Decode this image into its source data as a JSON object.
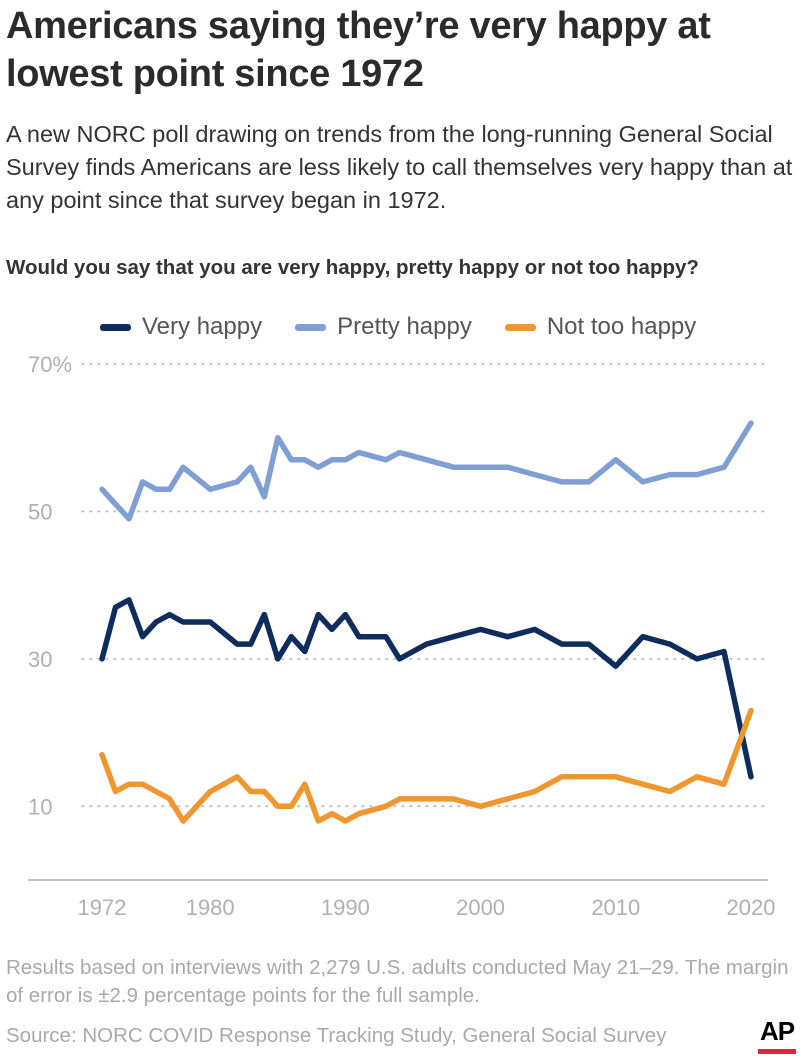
{
  "title": "Americans saying they’re very happy at lowest point since 1972",
  "subtitle": "A new NORC poll drawing on trends from the long-running General Social Survey finds Americans are less likely to call themselves very happy than at any point since that survey began in 1972.",
  "question": "Would you say that you are very happy, pretty happy or not too happy?",
  "note": "Results based on interviews with 2,279 U.S. adults conducted May 21–29. The margin of error is ±2.9 percentage points for the full sample.",
  "source": "Source: NORC COVID Response Tracking Study, General Social Survey",
  "logo_text": "AP",
  "colors": {
    "very_happy": "#0e2d5c",
    "pretty_happy": "#7f9fd4",
    "not_too_happy": "#f0962e",
    "logo_accent": "#e2233e"
  },
  "chart_data": {
    "type": "line",
    "x_ticks": [
      1972,
      1980,
      1990,
      2000,
      2010,
      2020
    ],
    "y_ticks": [
      10,
      30,
      50,
      70
    ],
    "y_tick_labels": [
      "10",
      "30",
      "50",
      "70%"
    ],
    "xlim": [
      1972,
      2020
    ],
    "ylim": [
      0,
      70
    ],
    "grid": "horizontal dotted",
    "legend_position": "top",
    "series": [
      {
        "name": "Very happy",
        "color": "#0e2d5c",
        "x": [
          1972,
          1973,
          1974,
          1975,
          1976,
          1977,
          1978,
          1980,
          1982,
          1983,
          1984,
          1985,
          1986,
          1987,
          1988,
          1989,
          1990,
          1991,
          1993,
          1994,
          1996,
          1998,
          2000,
          2002,
          2004,
          2006,
          2008,
          2010,
          2012,
          2014,
          2016,
          2018,
          2020
        ],
        "values": [
          30,
          37,
          38,
          33,
          35,
          36,
          35,
          35,
          32,
          32,
          36,
          30,
          33,
          31,
          36,
          34,
          36,
          33,
          33,
          30,
          32,
          33,
          34,
          33,
          34,
          32,
          32,
          29,
          33,
          32,
          30,
          31,
          14
        ]
      },
      {
        "name": "Pretty happy",
        "color": "#7f9fd4",
        "x": [
          1972,
          1973,
          1974,
          1975,
          1976,
          1977,
          1978,
          1980,
          1982,
          1983,
          1984,
          1985,
          1986,
          1987,
          1988,
          1989,
          1990,
          1991,
          1993,
          1994,
          1996,
          1998,
          2000,
          2002,
          2004,
          2006,
          2008,
          2010,
          2012,
          2014,
          2016,
          2018,
          2020
        ],
        "values": [
          53,
          51,
          49,
          54,
          53,
          53,
          56,
          53,
          54,
          56,
          52,
          60,
          57,
          57,
          56,
          57,
          57,
          58,
          57,
          58,
          57,
          56,
          56,
          56,
          55,
          54,
          54,
          57,
          54,
          55,
          55,
          56,
          62
        ]
      },
      {
        "name": "Not too happy",
        "color": "#f0962e",
        "x": [
          1972,
          1973,
          1974,
          1975,
          1976,
          1977,
          1978,
          1980,
          1982,
          1983,
          1984,
          1985,
          1986,
          1987,
          1988,
          1989,
          1990,
          1991,
          1993,
          1994,
          1996,
          1998,
          2000,
          2002,
          2004,
          2006,
          2008,
          2010,
          2012,
          2014,
          2016,
          2018,
          2020
        ],
        "values": [
          17,
          12,
          13,
          13,
          12,
          11,
          8,
          12,
          14,
          12,
          12,
          10,
          10,
          13,
          8,
          9,
          8,
          9,
          10,
          11,
          11,
          11,
          10,
          11,
          12,
          14,
          14,
          14,
          13,
          12,
          14,
          13,
          23
        ]
      }
    ]
  }
}
